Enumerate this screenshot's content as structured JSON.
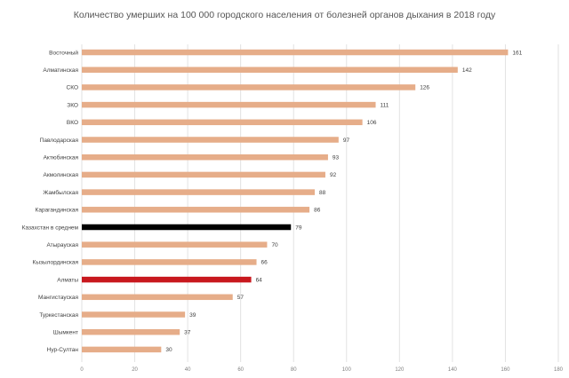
{
  "chart_data": {
    "type": "bar",
    "orientation": "horizontal",
    "title": "Количество умерших на 100 000  городского населения от болезней органов дыхания в 2018 году",
    "categories": [
      "Восточный",
      "Алматинская",
      "СКО",
      "ЗКО",
      "ВКО",
      "Павлодарская",
      "Актюбинская",
      "Акмолинская",
      "Жамбылская",
      "Карагандинская",
      "Казахстан в среднем",
      "Атырауская",
      "Кызылординская",
      "Алматы",
      "Мангистауская",
      "Туркестанская",
      "Шымкент",
      "Нур-Султан"
    ],
    "values": [
      161,
      142,
      126,
      111,
      106,
      97,
      93,
      92,
      88,
      86,
      79,
      70,
      66,
      64,
      57,
      39,
      37,
      30
    ],
    "value_labels": [
      "161",
      "142",
      "126",
      "111",
      "106",
      "97",
      "93",
      "92",
      "88",
      "86",
      "79",
      "70",
      "66",
      "64",
      "57",
      "39",
      "37",
      "30"
    ],
    "xlim": [
      0,
      180
    ],
    "xticks": [
      0,
      20,
      40,
      60,
      80,
      100,
      120,
      140,
      160,
      180
    ],
    "xlabel": "",
    "ylabel": "",
    "grid": true,
    "colors": {
      "default": "#e6ad89",
      "average": "#000000",
      "highlight": "#c8181e",
      "grid": "#e2e2e2"
    },
    "bar_styles": [
      "default",
      "default",
      "default",
      "default",
      "default",
      "default",
      "default",
      "default",
      "default",
      "default",
      "average",
      "default",
      "default",
      "highlight",
      "default",
      "default",
      "default",
      "default"
    ]
  }
}
